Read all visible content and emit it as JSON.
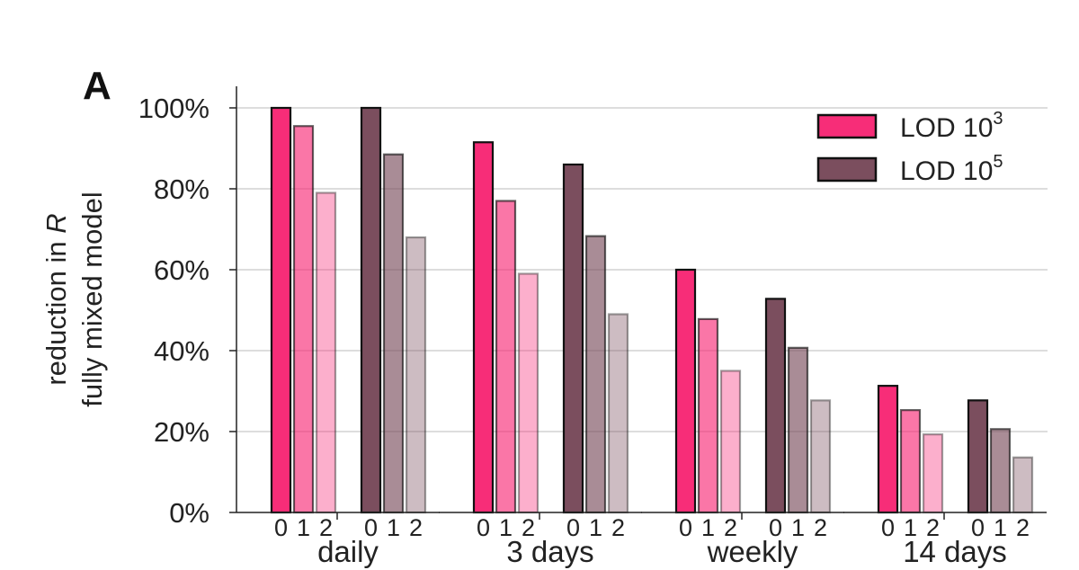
{
  "panel_label": "A",
  "chart_data": {
    "type": "bar",
    "categories": [
      "daily",
      "3 days",
      "weekly",
      "14 days"
    ],
    "group_levels": [
      "0",
      "1",
      "2"
    ],
    "series": [
      {
        "name": "LOD 10",
        "name_sup": "3",
        "color": "#f72d78",
        "values": [
          [
            100,
            95.5,
            79
          ],
          [
            91.5,
            77,
            59
          ],
          [
            60,
            47.8,
            35
          ],
          [
            31.3,
            25.3,
            19.3
          ]
        ]
      },
      {
        "name": "LOD 10",
        "name_sup": "5",
        "color": "#7b4e5e",
        "values": [
          [
            100,
            88.5,
            68
          ],
          [
            86,
            68.3,
            49
          ],
          [
            52.8,
            40.7,
            27.7
          ],
          [
            27.7,
            20.6,
            13.6
          ]
        ]
      }
    ],
    "level_opacities": [
      1.0,
      0.65,
      0.38
    ],
    "ylabel_line1": "reduction in",
    "ylabel_line1_italic": "R",
    "ylabel_line2": "fully mixed model",
    "yticks": [
      "0%",
      "20%",
      "40%",
      "60%",
      "80%",
      "100%"
    ],
    "ylim": [
      0,
      105
    ],
    "grid": true,
    "legend_position": "top-right"
  }
}
